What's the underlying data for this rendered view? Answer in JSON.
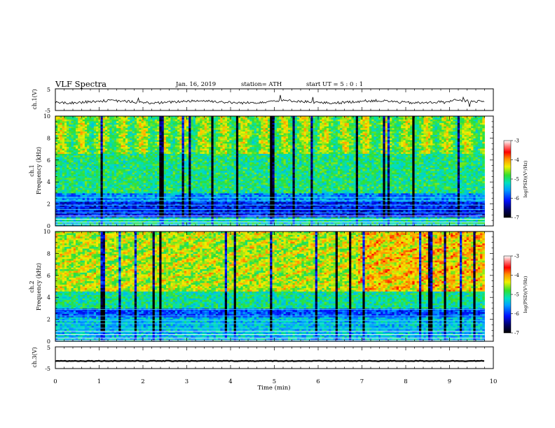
{
  "header": {
    "title": "VLF  Spectra",
    "date": "Jan. 16, 2019",
    "station": "station= ATH",
    "start_ut": "start  UT  =    5  : 0  : 1"
  },
  "chart_data": [
    {
      "type": "line",
      "name": "ch1-waveform",
      "ylabel": "ch.1(V)",
      "ylim": [
        -5,
        5
      ],
      "yticks": [
        "5",
        "-5"
      ],
      "xlim": [
        0,
        10
      ],
      "x_end": 9.8
    },
    {
      "type": "heatmap",
      "name": "ch1-spectrogram",
      "ylabel": "ch.1\nFrequency  (kHz)",
      "ylabel_lines": [
        "ch.1",
        "Frequency  (kHz)"
      ],
      "ylim": [
        0,
        10
      ],
      "yticks": [
        "0",
        "2",
        "4",
        "6",
        "8",
        "10"
      ],
      "xlim": [
        0,
        10
      ],
      "x_end": 9.8,
      "colorbar": {
        "label": "log(PSD)(V²/Hz)",
        "range": [
          -7,
          -3
        ],
        "ticks": [
          "-3",
          "-4",
          "-5",
          "-6",
          "-7"
        ]
      }
    },
    {
      "type": "heatmap",
      "name": "ch2-spectrogram",
      "ylabel_lines": [
        "ch.2",
        "Frequency  (kHz)"
      ],
      "ylim": [
        0,
        10
      ],
      "yticks": [
        "0",
        "2",
        "4",
        "6",
        "8",
        "10"
      ],
      "xlim": [
        0,
        10
      ],
      "x_end": 9.8,
      "colorbar": {
        "label": "log(PSD)(V²/Hz)",
        "range": [
          -7,
          -3
        ],
        "ticks": [
          "-3",
          "-4",
          "-5",
          "-6",
          "-7"
        ]
      }
    },
    {
      "type": "line",
      "name": "ch3-waveform",
      "ylabel": "ch.3(V)",
      "ylim": [
        -5,
        5
      ],
      "yticks": [
        "5",
        "-5"
      ],
      "xlim": [
        0,
        10
      ],
      "x_end": 9.8,
      "xlabel": "Time  (min)",
      "xticks": [
        "0",
        "1",
        "2",
        "3",
        "4",
        "5",
        "6",
        "7",
        "8",
        "9",
        "10"
      ]
    }
  ]
}
